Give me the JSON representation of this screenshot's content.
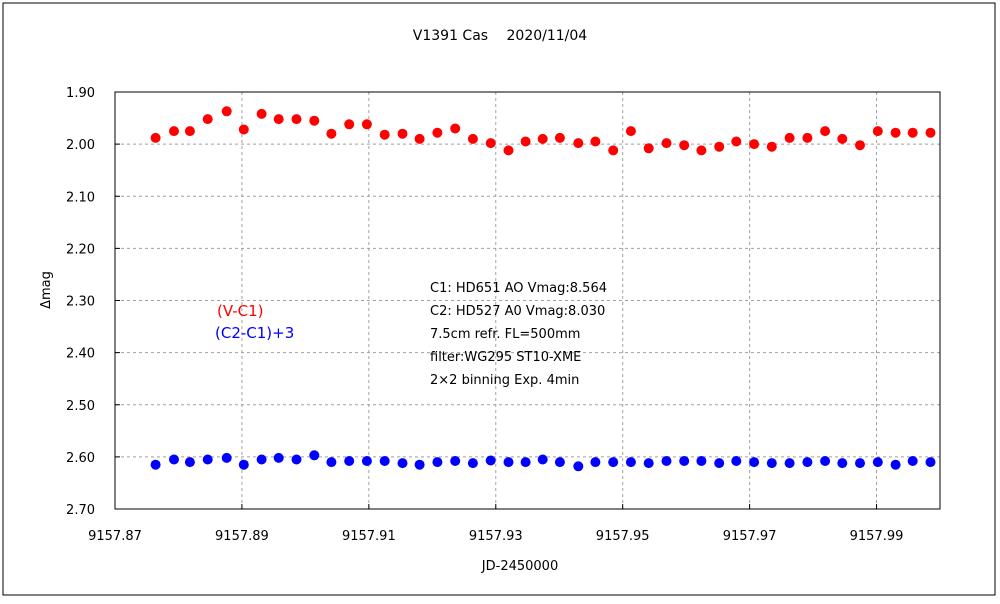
{
  "chart_data": {
    "type": "scatter",
    "title": "V1391 Cas　 2020/11/04",
    "xlabel": "JD-2450000",
    "ylabel": "Δmag",
    "xlim": [
      9157.87,
      9158.0
    ],
    "ylim": [
      1.9,
      2.7
    ],
    "y_reversed": true,
    "grid": true,
    "x_ticks": [
      9157.87,
      9157.89,
      9157.91,
      9157.93,
      9157.95,
      9157.97,
      9157.99
    ],
    "x_tick_labels": [
      "9157.87",
      "9157.89",
      "9157.91",
      "9157.93",
      "9157.95",
      "9157.97",
      "9157.99"
    ],
    "y_ticks": [
      1.9,
      2.0,
      2.1,
      2.2,
      2.3,
      2.4,
      2.5,
      2.6,
      2.7
    ],
    "y_tick_labels": [
      "1.90",
      "2.00",
      "2.10",
      "2.20",
      "2.30",
      "2.40",
      "2.50",
      "2.60",
      "2.70"
    ],
    "x": [
      9157.8764,
      9157.8793,
      9157.8818,
      9157.8846,
      9157.8876,
      9157.8903,
      9157.8931,
      9157.8958,
      9157.8986,
      9157.9014,
      9157.9041,
      9157.9069,
      9157.9097,
      9157.9125,
      9157.9153,
      9157.918,
      9157.9208,
      9157.9236,
      9157.9264,
      9157.9292,
      9157.932,
      9157.9347,
      9157.9374,
      9157.9401,
      9157.943,
      9157.9457,
      9157.9485,
      9157.9513,
      9157.9541,
      9157.9569,
      9157.9597,
      9157.9624,
      9157.9652,
      9157.9679,
      9157.9707,
      9157.9735,
      9157.9763,
      9157.9791,
      9157.9819,
      9157.9846,
      9157.9874,
      9157.9902,
      9157.993,
      9157.9957,
      9157.9985
    ],
    "series": [
      {
        "name": "(V-C1)",
        "color": "#ff0000",
        "values": [
          1.988,
          1.975,
          1.975,
          1.952,
          1.937,
          1.972,
          1.942,
          1.952,
          1.952,
          1.955,
          1.98,
          1.962,
          1.962,
          1.982,
          1.98,
          1.99,
          1.978,
          1.97,
          1.99,
          1.998,
          2.012,
          1.995,
          1.99,
          1.988,
          1.998,
          1.995,
          2.012,
          1.975,
          2.008,
          1.998,
          2.002,
          2.012,
          2.005,
          1.995,
          2.0,
          2.005,
          1.988,
          1.988,
          1.975,
          1.99,
          2.002,
          1.975,
          1.978,
          1.978,
          1.978
        ]
      },
      {
        "name": "(C2-C1)+3",
        "color": "#0000ff",
        "values": [
          2.615,
          2.605,
          2.61,
          2.605,
          2.602,
          2.615,
          2.605,
          2.602,
          2.605,
          2.597,
          2.61,
          2.608,
          2.608,
          2.608,
          2.612,
          2.615,
          2.61,
          2.608,
          2.612,
          2.607,
          2.61,
          2.61,
          2.605,
          2.61,
          2.618,
          2.61,
          2.61,
          2.61,
          2.612,
          2.608,
          2.608,
          2.608,
          2.612,
          2.608,
          2.61,
          2.612,
          2.612,
          2.61,
          2.608,
          2.612,
          2.612,
          2.61,
          2.615,
          2.608,
          2.61
        ]
      }
    ],
    "annotations": [
      "C1: HD651 AO Vmag:8.564",
      "C2: HD527 A0  Vmag:8.030",
      "7.5cm refr. FL=500mm",
      "filter:WG295  ST10-XME",
      "2×2 binning  Exp. 4min"
    ]
  }
}
